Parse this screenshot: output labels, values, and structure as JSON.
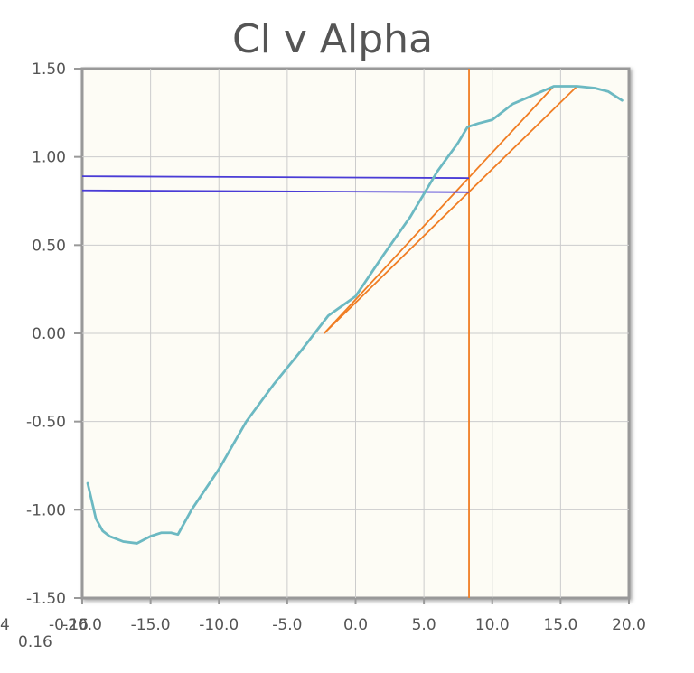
{
  "chart_data": {
    "type": "line",
    "title": "Cl v Alpha",
    "xlabel": "",
    "ylabel": "",
    "xlim": [
      -20,
      20
    ],
    "ylim": [
      -1.5,
      1.5
    ],
    "x_ticks": [
      "-20.0",
      "-15.0",
      "-10.0",
      "-5.0",
      "0.0",
      "5.0",
      "10.0",
      "15.0",
      "20.0"
    ],
    "y_ticks": [
      "1.50",
      "1.00",
      "0.50",
      "0.00",
      "-0.50",
      "-1.00",
      "-1.50"
    ],
    "x_tick_values": [
      -20,
      -15,
      -10,
      -5,
      0,
      5,
      10,
      15,
      20
    ],
    "y_tick_values": [
      1.5,
      1.0,
      0.5,
      0.0,
      -0.5,
      -1.0,
      -1.5
    ],
    "grid": true,
    "extra_labels": [
      "-0.16",
      "0.16",
      "4"
    ],
    "series": [
      {
        "color": "#6cb9c2",
        "x": [
          -19.6,
          -19.0,
          -18.5,
          -18.0,
          -17.0,
          -16.0,
          -15.0,
          -14.2,
          -13.5,
          -13.0,
          -12.0,
          -10.0,
          -8.0,
          -6.0,
          -4.0,
          -2.0,
          0.0,
          2.0,
          4.0,
          6.0,
          7.5,
          8.2,
          9.0,
          10.0,
          11.5,
          13.0,
          14.5,
          16.2,
          17.5,
          18.5,
          19.5
        ],
        "y": [
          -0.85,
          -1.05,
          -1.12,
          -1.15,
          -1.18,
          -1.19,
          -1.15,
          -1.13,
          -1.13,
          -1.14,
          -1.0,
          -0.77,
          -0.5,
          -0.29,
          -0.1,
          0.1,
          0.21,
          0.44,
          0.66,
          0.92,
          1.08,
          1.17,
          1.19,
          1.21,
          1.3,
          1.35,
          1.4,
          1.4,
          1.39,
          1.37,
          1.32
        ]
      }
    ],
    "lines": [
      {
        "color": "#f07d23",
        "points": [
          [
            8.3,
            -1.5
          ],
          [
            8.3,
            1.5
          ]
        ]
      },
      {
        "color": "#f07d23",
        "points": [
          [
            -2.3,
            0.0
          ],
          [
            14.5,
            1.4
          ]
        ]
      },
      {
        "color": "#f07d23",
        "points": [
          [
            -2.3,
            0.0
          ],
          [
            16.2,
            1.4
          ]
        ]
      },
      {
        "color": "#4a3cd6",
        "points": [
          [
            -20.0,
            0.89
          ],
          [
            8.3,
            0.88
          ]
        ]
      },
      {
        "color": "#4a3cd6",
        "points": [
          [
            -20.0,
            0.81
          ],
          [
            8.3,
            0.8
          ]
        ]
      }
    ],
    "colors": {
      "plot_background": "#fdfcf5",
      "grid": "#cccccc",
      "axis": "#999999",
      "text": "#555555"
    }
  }
}
